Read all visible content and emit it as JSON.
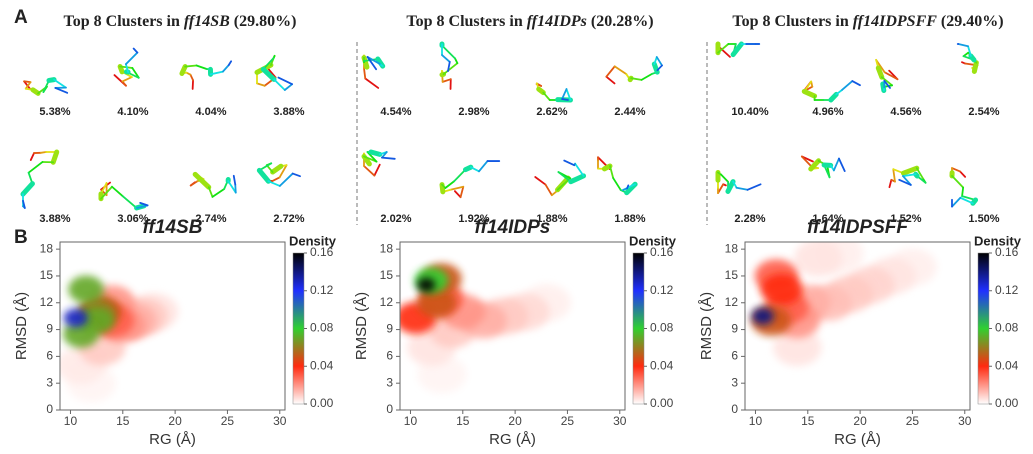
{
  "panel_a": {
    "label": "A",
    "groups": [
      {
        "title_prefix": "Top 8 Clusters in",
        "force_field": "ff14SB",
        "coverage": "(29.80%)",
        "clusters": [
          "5.38%",
          "4.10%",
          "4.04%",
          "3.88%",
          "3.88%",
          "3.06%",
          "2.74%",
          "2.72%"
        ]
      },
      {
        "title_prefix": "Top 8 Clusters in",
        "force_field": "ff14IDPs",
        "coverage": "(20.28%)",
        "clusters": [
          "4.54%",
          "2.98%",
          "2.62%",
          "2.44%",
          "2.02%",
          "1.92%",
          "1.88%",
          "1.88%"
        ]
      },
      {
        "title_prefix": "Top 8 Clusters in",
        "force_field": "ff14IDPSFF",
        "coverage": "(29.40%)",
        "clusters": [
          "10.40%",
          "4.96%",
          "4.56%",
          "2.54%",
          "2.28%",
          "1.64%",
          "1.52%",
          "1.50%"
        ]
      }
    ]
  },
  "panel_b_label": "B",
  "chart_data": [
    {
      "type": "heatmap",
      "title": "ff14SB",
      "x_label": "RG (Å)",
      "y_label": "RMSD (Å)",
      "xlim": [
        9,
        30.5
      ],
      "xticks": [
        10,
        15,
        20,
        25,
        30
      ],
      "ylim": [
        0,
        18.8
      ],
      "yticks": [
        0,
        3,
        6,
        9,
        12,
        15,
        18
      ],
      "colorbar": {
        "title": "Density",
        "lim": [
          0,
          0.16
        ],
        "ticks": [
          {
            "value": 0,
            "label": "0.00"
          },
          0.04,
          0.08,
          0.12,
          0.16
        ],
        "colors": [
          "#ffffff",
          "#ff2a10",
          "#30d030",
          "#2030ff",
          "#000000"
        ]
      },
      "x": [
        12,
        11,
        18,
        17,
        16,
        13,
        15,
        14,
        14,
        13,
        12.5,
        12.5,
        11,
        11.5,
        10.5
      ],
      "y": [
        3,
        5,
        11,
        10.5,
        10,
        7,
        9.5,
        12,
        10,
        11,
        11,
        10,
        8.5,
        13.5,
        10.3
      ],
      "values": [
        0.002,
        0.004,
        0.005,
        0.01,
        0.015,
        0.01,
        0.02,
        0.02,
        0.03,
        0.05,
        0.06,
        0.07,
        0.07,
        0.07,
        0.13
      ]
    },
    {
      "type": "heatmap",
      "title": "ff14IDPs",
      "x_label": "RG (Å)",
      "y_label": "RMSD (Å)",
      "xlim": [
        9,
        30.5
      ],
      "xticks": [
        10,
        15,
        20,
        25,
        30
      ],
      "ylim": [
        0,
        18.8
      ],
      "yticks": [
        0,
        3,
        6,
        9,
        12,
        15,
        18
      ],
      "colorbar": {
        "title": "Density",
        "lim": [
          0,
          0.16
        ],
        "ticks": [
          {
            "value": 0,
            "label": "0.00"
          },
          0.04,
          0.08,
          0.12,
          0.16
        ],
        "colors": [
          "#ffffff",
          "#ff2a10",
          "#30d030",
          "#2030ff",
          "#000000"
        ]
      },
      "x": [
        13,
        23,
        12,
        21,
        19,
        14,
        17,
        15,
        13,
        10.5,
        12.5,
        13,
        12,
        11.5
      ],
      "y": [
        4,
        12,
        7,
        11,
        10.5,
        9,
        10,
        11,
        12.5,
        10.3,
        12,
        14.7,
        14.5,
        14
      ],
      "values": [
        0.002,
        0.003,
        0.005,
        0.007,
        0.01,
        0.01,
        0.015,
        0.02,
        0.03,
        0.04,
        0.05,
        0.05,
        0.08,
        0.16
      ]
    },
    {
      "type": "heatmap",
      "title": "ff14IDPSFF",
      "x_label": "RG (Å)",
      "y_label": "RMSD (Å)",
      "xlim": [
        9,
        30.5
      ],
      "xticks": [
        10,
        15,
        20,
        25,
        30
      ],
      "ylim": [
        0,
        18.8
      ],
      "yticks": [
        0,
        3,
        6,
        9,
        12,
        15,
        18
      ],
      "colorbar": {
        "title": "Density",
        "lim": [
          0,
          0.16
        ],
        "ticks": [
          {
            "value": 0,
            "label": "0.00"
          },
          0.04,
          0.08,
          0.12,
          0.16
        ],
        "colors": [
          "#ffffff",
          "#ff2a10",
          "#30d030",
          "#2030ff",
          "#000000"
        ]
      },
      "x": [
        25,
        18,
        23,
        14,
        16,
        21,
        19,
        17,
        15,
        14,
        13,
        12,
        12.5,
        11.5,
        10.7
      ],
      "y": [
        16,
        17.5,
        15,
        7,
        17,
        14,
        13,
        12,
        12,
        10,
        11.5,
        15,
        13.5,
        10,
        10.5
      ],
      "values": [
        0.003,
        0.003,
        0.005,
        0.005,
        0.005,
        0.008,
        0.01,
        0.012,
        0.015,
        0.02,
        0.03,
        0.03,
        0.04,
        0.05,
        0.14
      ]
    }
  ]
}
